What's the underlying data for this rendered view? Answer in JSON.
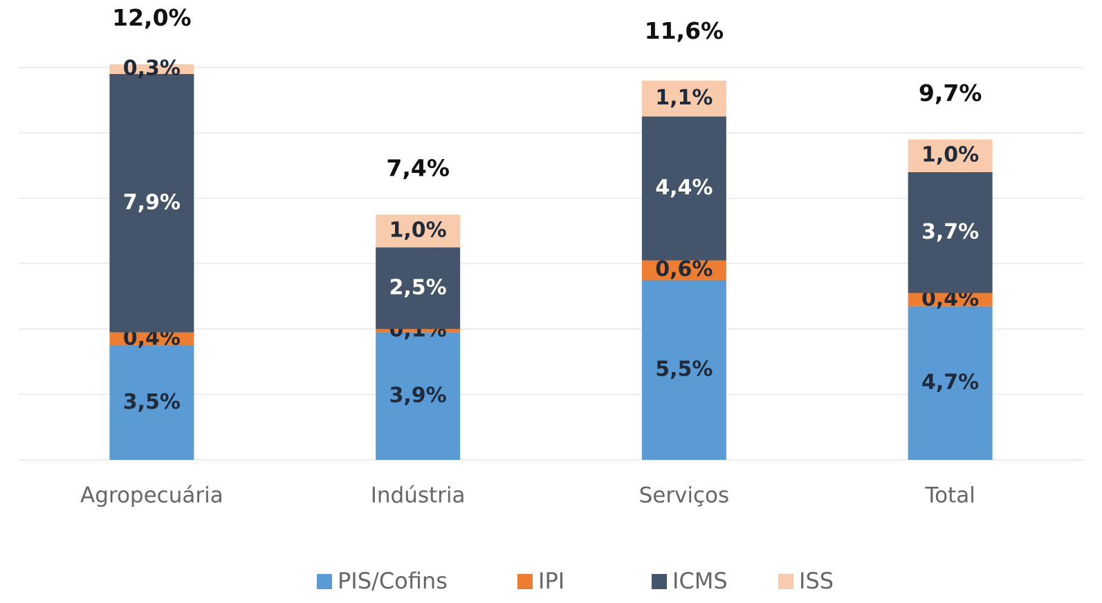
{
  "chart_data": {
    "type": "stacked_bar",
    "categories": [
      "Agropecuária",
      "Indústria",
      "Serviços",
      "Total"
    ],
    "series": [
      {
        "name": "PIS/Cofins",
        "color": "#5b9bd5",
        "values": [
          3.5,
          3.9,
          5.5,
          4.7
        ],
        "value_labels": [
          "3,5%",
          "3,9%",
          "5,5%",
          "4,7%"
        ]
      },
      {
        "name": "IPI",
        "color": "#ed7d31",
        "values": [
          0.4,
          0.1,
          0.6,
          0.4
        ],
        "value_labels": [
          "0,4%",
          "0,1%",
          "0,6%",
          "0,4%"
        ]
      },
      {
        "name": "ICMS",
        "color": "#44546a",
        "values": [
          7.9,
          2.5,
          4.4,
          3.7
        ],
        "value_labels": [
          "7,9%",
          "2,5%",
          "4,4%",
          "3,7%"
        ]
      },
      {
        "name": "ISS",
        "color": "#f8cbad",
        "values": [
          0.3,
          1.0,
          1.1,
          1.0
        ],
        "value_labels": [
          "0,3%",
          "1,0%",
          "1,1%",
          "1,0%"
        ]
      }
    ],
    "totals": [
      12.0,
      7.4,
      11.6,
      9.7
    ],
    "total_labels": [
      "12,0%",
      "7,4%",
      "11,6%",
      "9,7%"
    ],
    "ylim": [
      0,
      14
    ],
    "yticks": [
      0,
      2,
      4,
      6,
      8,
      10,
      12
    ],
    "grid": true,
    "legend": "bottom"
  }
}
